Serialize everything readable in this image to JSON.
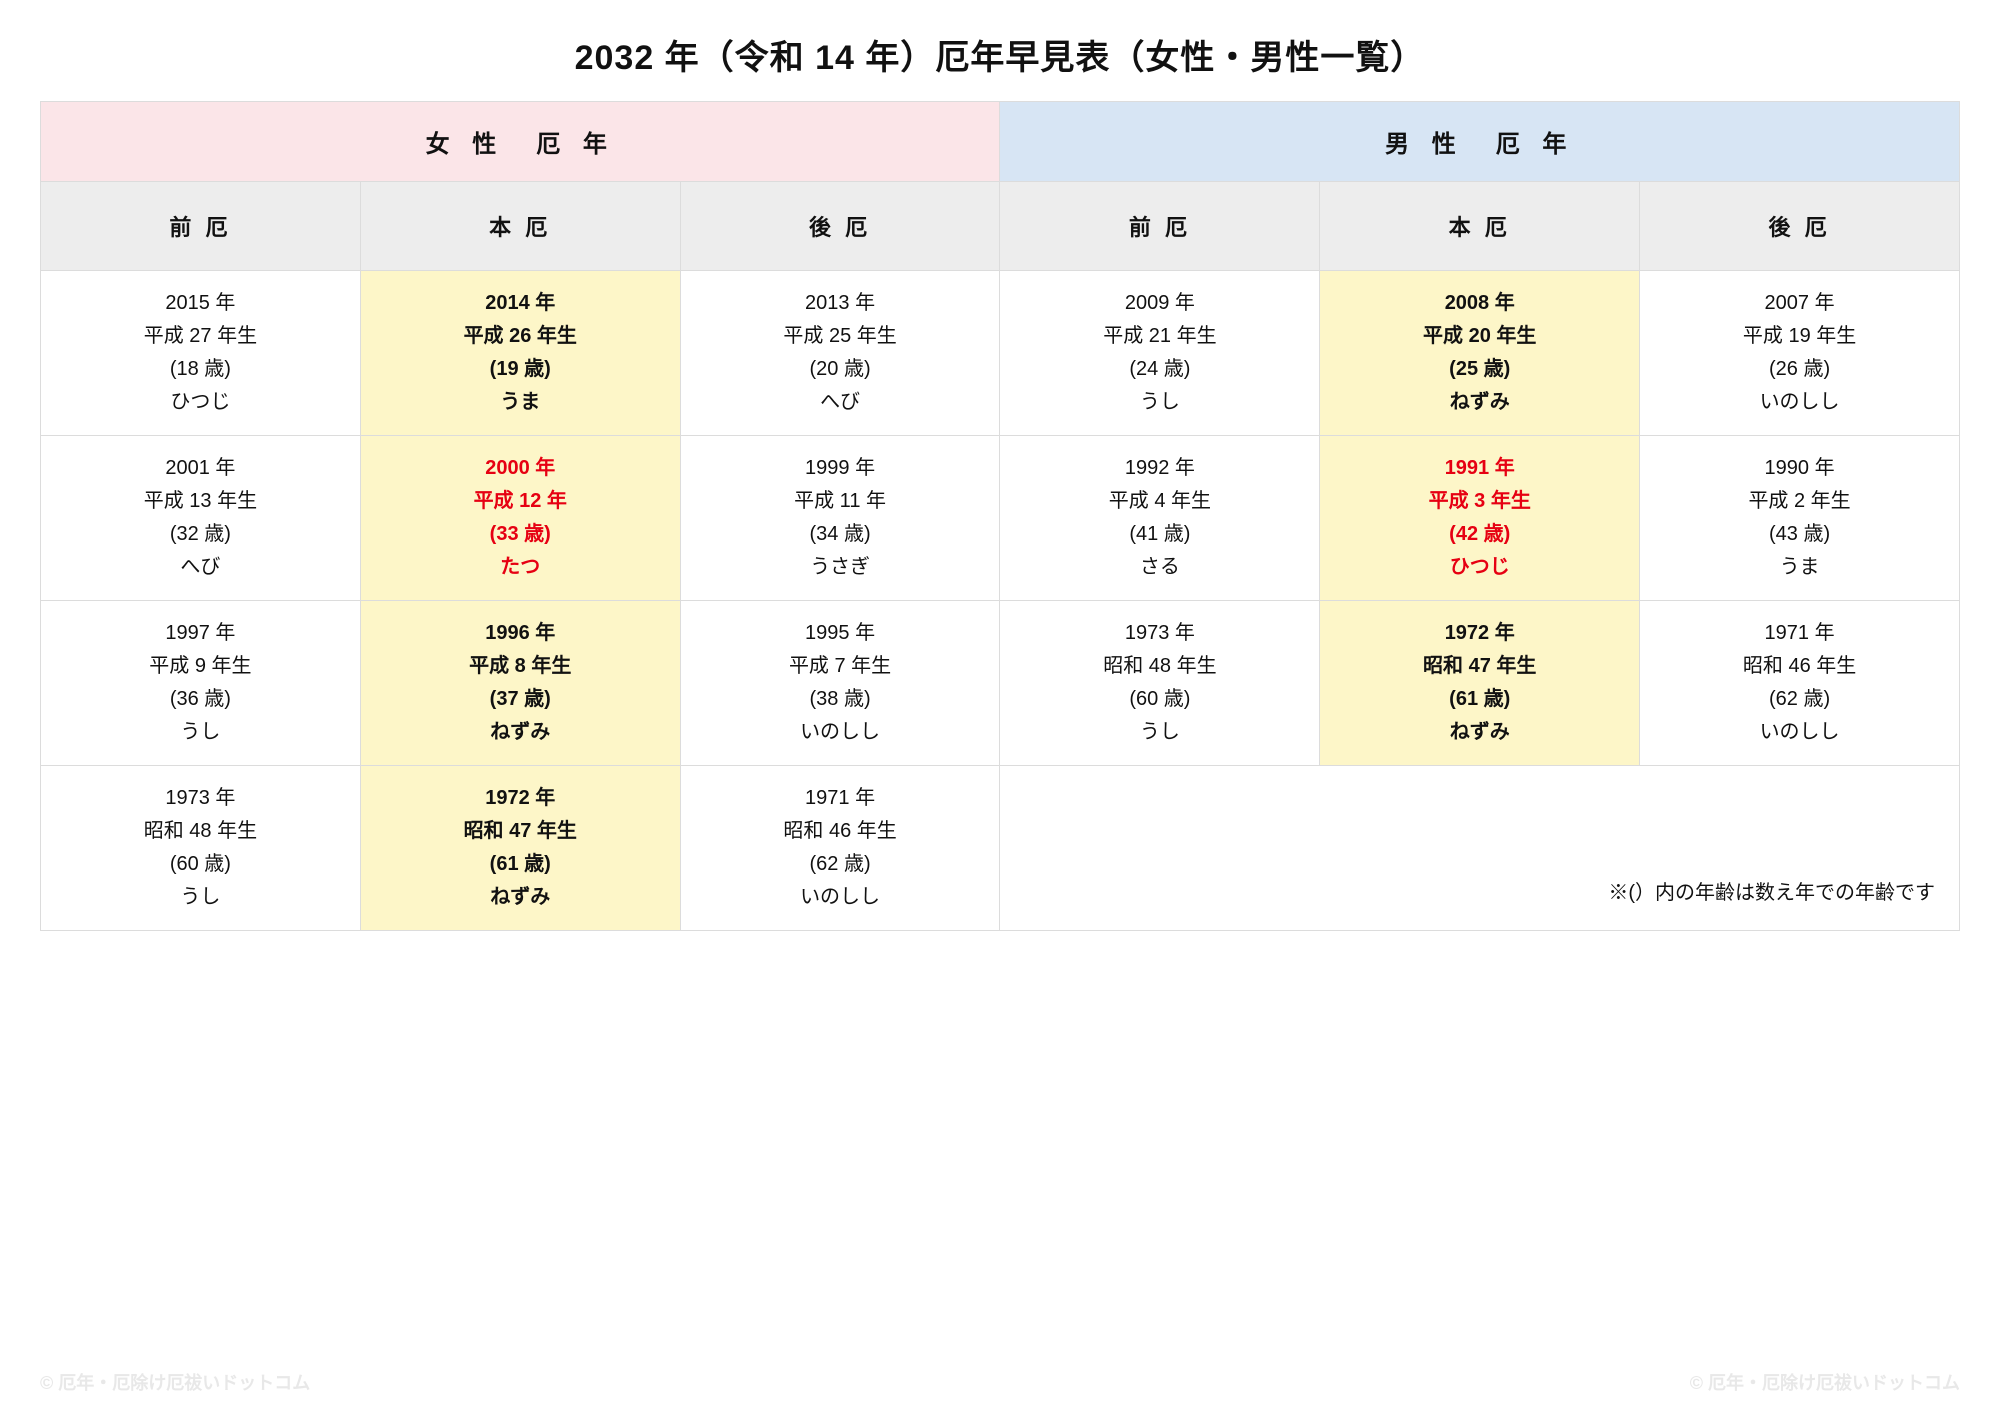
{
  "title": "2032 年（令和 14 年）厄年早見表（女性・男性一覧）",
  "colors": {
    "female_header_bg": "#fbe5e8",
    "male_header_bg": "#d7e5f4",
    "sub_header_bg": "#ededed",
    "honyaku_bg": "#fdf6c8",
    "taiyaku_text": "#e60012",
    "border": "#dcdcdc",
    "text": "#111111",
    "watermark": "#e8e8e8"
  },
  "header": {
    "female": "女 性　厄 年",
    "male": "男 性　厄 年",
    "sub": [
      "前 厄",
      "本 厄",
      "後 厄",
      "前 厄",
      "本 厄",
      "後 厄"
    ]
  },
  "rows": [
    {
      "cells": [
        {
          "l1": "2015 年",
          "l2": "平成 27 年生",
          "l3": "(18 歳)",
          "l4": "ひつじ",
          "style": ""
        },
        {
          "l1": "2014 年",
          "l2": "平成 26 年生",
          "l3": "(19 歳)",
          "l4": "うま",
          "style": "honyaku"
        },
        {
          "l1": "2013 年",
          "l2": "平成 25 年生",
          "l3": "(20 歳)",
          "l4": "へび",
          "style": ""
        },
        {
          "l1": "2009 年",
          "l2": "平成 21 年生",
          "l3": "(24 歳)",
          "l4": "うし",
          "style": ""
        },
        {
          "l1": "2008 年",
          "l2": "平成 20 年生",
          "l3": "(25 歳)",
          "l4": "ねずみ",
          "style": "honyaku"
        },
        {
          "l1": "2007 年",
          "l2": "平成 19 年生",
          "l3": "(26 歳)",
          "l4": "いのしし",
          "style": ""
        }
      ]
    },
    {
      "cells": [
        {
          "l1": "2001 年",
          "l2": "平成 13 年生",
          "l3": "(32 歳)",
          "l4": "へび",
          "style": ""
        },
        {
          "l1": "2000 年",
          "l2": "平成 12 年",
          "l3": "(33 歳)",
          "l4": "たつ",
          "style": "honyaku taiyaku"
        },
        {
          "l1": "1999 年",
          "l2": "平成 11 年",
          "l3": "(34 歳)",
          "l4": "うさぎ",
          "style": ""
        },
        {
          "l1": "1992 年",
          "l2": "平成 4 年生",
          "l3": "(41 歳)",
          "l4": "さる",
          "style": ""
        },
        {
          "l1": "1991 年",
          "l2": "平成 3 年生",
          "l3": "(42 歳)",
          "l4": "ひつじ",
          "style": "honyaku taiyaku"
        },
        {
          "l1": "1990 年",
          "l2": "平成 2 年生",
          "l3": "(43 歳)",
          "l4": "うま",
          "style": ""
        }
      ]
    },
    {
      "cells": [
        {
          "l1": "1997 年",
          "l2": "平成 9 年生",
          "l3": "(36 歳)",
          "l4": "うし",
          "style": ""
        },
        {
          "l1": "1996 年",
          "l2": "平成 8 年生",
          "l3": "(37 歳)",
          "l4": "ねずみ",
          "style": "honyaku"
        },
        {
          "l1": "1995 年",
          "l2": "平成 7 年生",
          "l3": "(38 歳)",
          "l4": "いのしし",
          "style": ""
        },
        {
          "l1": "1973 年",
          "l2": "昭和 48 年生",
          "l3": "(60 歳)",
          "l4": "うし",
          "style": ""
        },
        {
          "l1": "1972 年",
          "l2": "昭和 47 年生",
          "l3": "(61 歳)",
          "l4": "ねずみ",
          "style": "honyaku"
        },
        {
          "l1": "1971 年",
          "l2": "昭和 46 年生",
          "l3": "(62 歳)",
          "l4": "いのしし",
          "style": ""
        }
      ]
    },
    {
      "cells": [
        {
          "l1": "1973 年",
          "l2": "昭和 48 年生",
          "l3": "(60 歳)",
          "l4": "うし",
          "style": ""
        },
        {
          "l1": "1972 年",
          "l2": "昭和 47 年生",
          "l3": "(61 歳)",
          "l4": "ねずみ",
          "style": "honyaku"
        },
        {
          "l1": "1971 年",
          "l2": "昭和 46 年生",
          "l3": "(62 歳)",
          "l4": "いのしし",
          "style": ""
        }
      ],
      "note": "※(）内の年齢は数え年での年齢です"
    }
  ],
  "watermark": "© 厄年・厄除け厄祓いドットコム"
}
